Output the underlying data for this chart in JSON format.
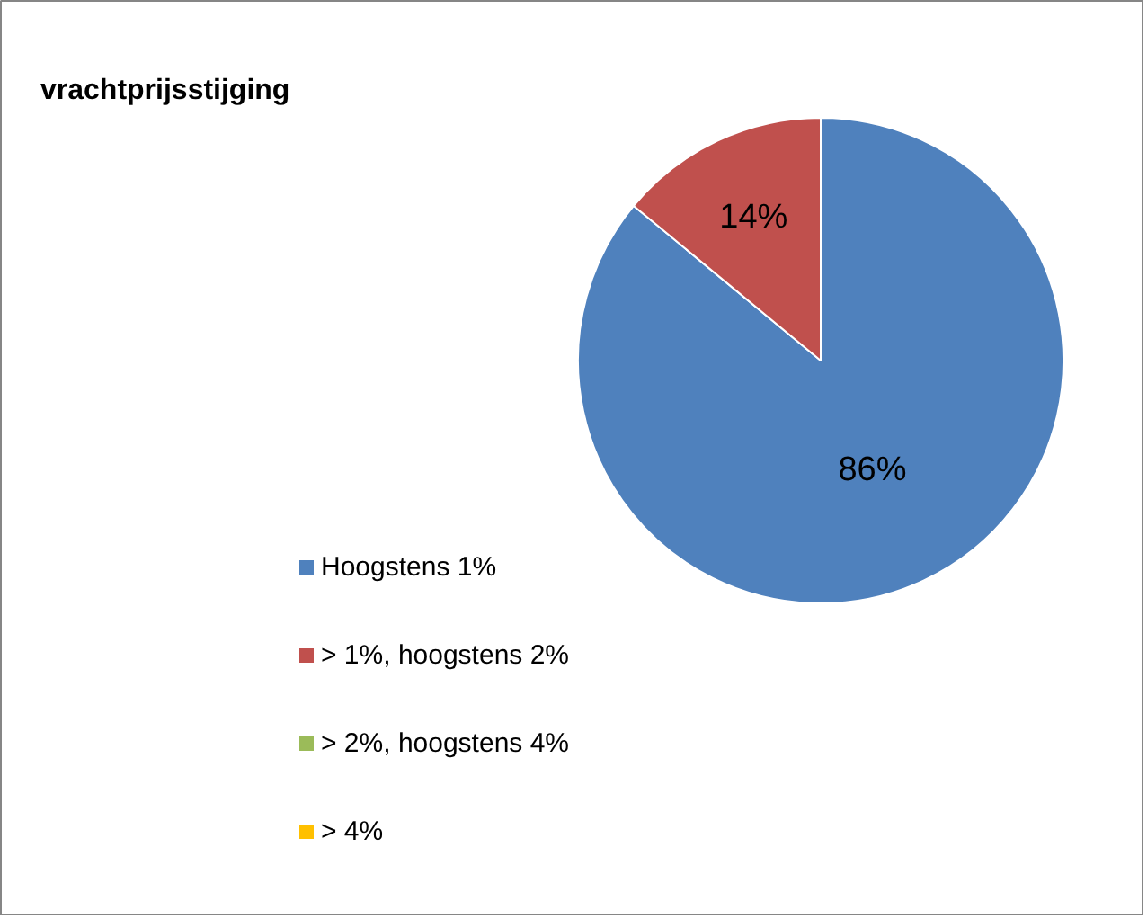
{
  "chart_data": {
    "type": "pie",
    "title": "vrachtprijsstijging",
    "categories": [
      "Hoogstens 1%",
      "> 1%, hoogstens 2%",
      "> 2%, hoogstens 4%",
      "> 4%"
    ],
    "values": [
      86,
      14,
      0,
      0
    ],
    "colors": [
      "#4f81bd",
      "#c0504d",
      "#9bbb59",
      "#ffc000"
    ],
    "value_labels": [
      "86%",
      "14%",
      null,
      null
    ],
    "legend": "bottom left"
  }
}
